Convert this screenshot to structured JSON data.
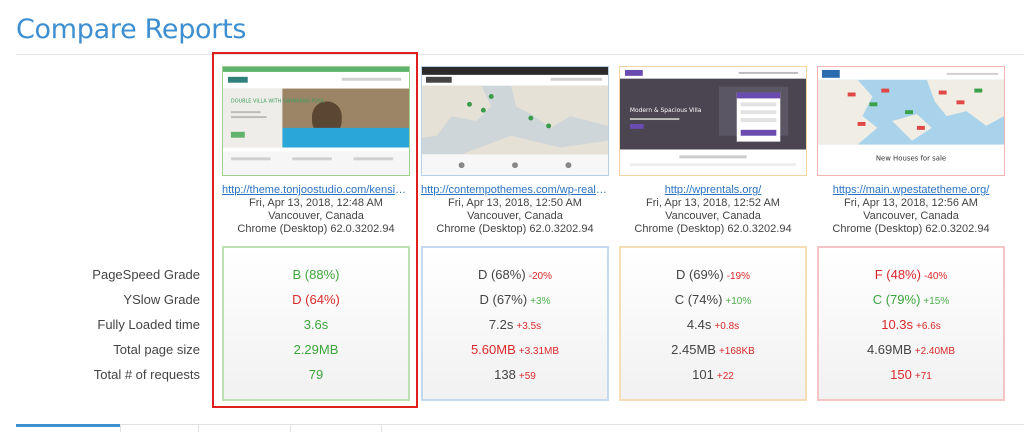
{
  "page": {
    "title": "Compare Reports"
  },
  "row_labels": [
    "PageSpeed Grade",
    "YSlow Grade",
    "Fully Loaded time",
    "Total page size",
    "Total # of requests"
  ],
  "reports": [
    {
      "url": "http://theme.tonjoostudio.com/kensington/...",
      "date": "Fri, Apr 13, 2018, 12:48 AM",
      "location": "Vancouver, Canada",
      "browser": "Chrome (Desktop) 62.0.3202.94",
      "accent": "#9fd08f",
      "metrics": [
        {
          "value": "B (88%)",
          "delta": ""
        },
        {
          "value": "D (64%)",
          "delta": ""
        },
        {
          "value": "3.6s",
          "delta": ""
        },
        {
          "value": "2.29MB",
          "delta": ""
        },
        {
          "value": "79",
          "delta": ""
        }
      ]
    },
    {
      "url": "http://contempothemes.com/wp-real-estat...",
      "date": "Fri, Apr 13, 2018, 12:50 AM",
      "location": "Vancouver, Canada",
      "browser": "Chrome (Desktop) 62.0.3202.94",
      "accent": "#b8cfe8",
      "metrics": [
        {
          "value": "D (68%)",
          "delta": "-20%"
        },
        {
          "value": "D (67%)",
          "delta": "+3%"
        },
        {
          "value": "7.2s",
          "delta": "+3.5s"
        },
        {
          "value": "5.60MB",
          "delta": "+3.31MB"
        },
        {
          "value": "138",
          "delta": "+59"
        }
      ]
    },
    {
      "url": "http://wprentals.org/",
      "date": "Fri, Apr 13, 2018, 12:52 AM",
      "location": "Vancouver, Canada",
      "browser": "Chrome (Desktop) 62.0.3202.94",
      "accent": "#f2d3a2",
      "metrics": [
        {
          "value": "D (69%)",
          "delta": "-19%"
        },
        {
          "value": "C (74%)",
          "delta": "+10%"
        },
        {
          "value": "4.4s",
          "delta": "+0.8s"
        },
        {
          "value": "2.45MB",
          "delta": "+168KB"
        },
        {
          "value": "101",
          "delta": "+22"
        }
      ]
    },
    {
      "url": "https://main.wpestatetheme.org/",
      "date": "Fri, Apr 13, 2018, 12:56 AM",
      "location": "Vancouver, Canada",
      "browser": "Chrome (Desktop) 62.0.3202.94",
      "accent": "#f2b3b3",
      "metrics": [
        {
          "value": "F (48%)",
          "delta": "-40%"
        },
        {
          "value": "C (79%)",
          "delta": "+15%"
        },
        {
          "value": "10.3s",
          "delta": "+6.6s"
        },
        {
          "value": "4.69MB",
          "delta": "+2.40MB"
        },
        {
          "value": "150",
          "delta": "+71"
        }
      ]
    }
  ],
  "thumbnails": {
    "report1_heading": "DOUBLE VILLA WITH SWIMMING POOL",
    "report3_heading": "Modern & Spacious Villa",
    "report4_caption": "New Houses for sale"
  },
  "colors": {
    "title": "#3d8fd1",
    "good": "#3ca53c",
    "bad": "#d9292c",
    "highlight": "#e01e1e"
  }
}
